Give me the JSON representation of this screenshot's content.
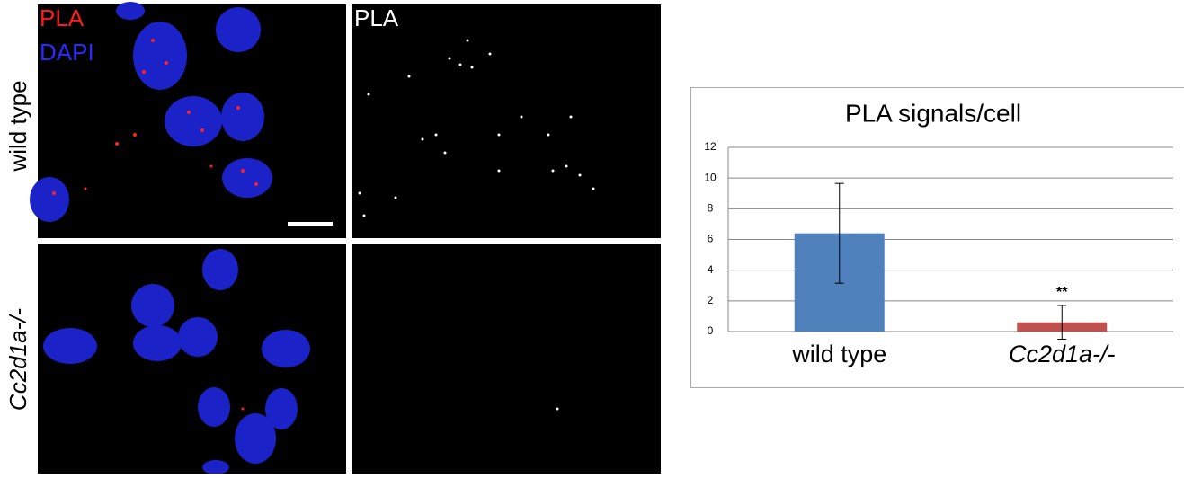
{
  "panels": {
    "merge_labels": [
      "PLA",
      "DAPI"
    ],
    "single_label": "PLA",
    "rows": [
      "wild type",
      "Cc2d1a-/-"
    ]
  },
  "chart_data": {
    "type": "bar",
    "title": "PLA signals/cell",
    "categories": [
      "wild type",
      "Cc2d1a-/-"
    ],
    "values": [
      6.4,
      0.6
    ],
    "errors": [
      3.25,
      1.1
    ],
    "colors": [
      "#4f81bd",
      "#c0504d"
    ],
    "annotation": "**",
    "ylim": [
      0,
      12
    ],
    "yticks": [
      0,
      2,
      4,
      6,
      8,
      10,
      12
    ],
    "grid": true
  }
}
